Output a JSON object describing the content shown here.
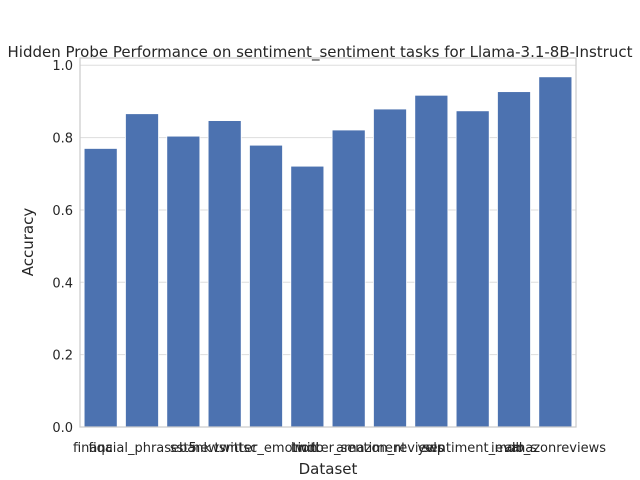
{
  "chart_data": {
    "type": "bar",
    "title": "Hidden Probe Performance on sentiment_sentiment tasks for Llama-3.1-8B-Instruct",
    "xlabel": "Dataset",
    "ylabel": "Accuracy",
    "categories": [
      "fiqa",
      "financial_phrasebank",
      "sst5",
      "newsmtsc",
      "twitter_emotion",
      "imdb",
      "twitter_sentiment",
      "amazon_reviews",
      "yelp",
      "sentiment_eval",
      "imdb_s",
      "amazonreviews"
    ],
    "values": [
      0.77,
      0.866,
      0.804,
      0.847,
      0.779,
      0.721,
      0.821,
      0.879,
      0.917,
      0.874,
      0.927,
      0.968
    ],
    "ylim": [
      0,
      1.02
    ],
    "yticks": [
      0.0,
      0.2,
      0.4,
      0.6,
      0.8,
      1.0
    ],
    "ytick_labels": [
      "0.0",
      "0.2",
      "0.4",
      "0.6",
      "0.8",
      "1.0"
    ],
    "grid": "y",
    "bar_color": "#4c72b0"
  }
}
